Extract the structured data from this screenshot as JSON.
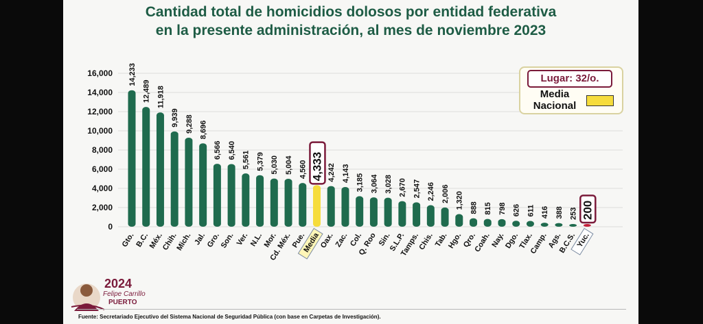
{
  "title_line1": "Cantidad total de homicidios dolosos por entidad federativa",
  "title_line2": "en la presente administración, al mes de noviembre 2023",
  "legend": {
    "lugar": "Lugar: 32/o.",
    "media_label_line1": "Media",
    "media_label_line2": "Nacional",
    "media_color": "#f6dc3c"
  },
  "logo": {
    "year": "2024",
    "name": "Felipe Carrillo",
    "place": "PUERTO"
  },
  "source": "Fuente:  Secretariado Ejecutivo del Sistema Nacional de Seguridad Pública (con base en Carpetas de Investigación).",
  "colors": {
    "bar": "#1f6b4e",
    "media": "#f6dc3c",
    "highlight": "#c41f3a",
    "title": "#1e5c45",
    "accent": "#7a1a3a"
  },
  "chart_data": {
    "type": "bar",
    "title": "Cantidad total de homicidios dolosos por entidad federativa en la presente administración, al mes de noviembre 2023",
    "xlabel": "",
    "ylabel": "",
    "ylim": [
      0,
      16000
    ],
    "yticks": [
      "0",
      "2,000",
      "4,000",
      "6,000",
      "8,000",
      "10,000",
      "12,000",
      "14,000",
      "16,000"
    ],
    "grid": true,
    "categories": [
      "Gto.",
      "B.C.",
      "Méx.",
      "Chih.",
      "Mich.",
      "Jal.",
      "Gro.",
      "Son.",
      "Ver.",
      "N.L.",
      "Mor.",
      "Cd. Méx.",
      "Pue.",
      "Media",
      "Oax.",
      "Zac.",
      "Col.",
      "Q. Roo",
      "Sin.",
      "S.L.P.",
      "Tamps.",
      "Chis.",
      "Tab.",
      "Hgo.",
      "Qro.",
      "Coah.",
      "Nay.",
      "Dgo.",
      "Tlax.",
      "Camp.",
      "Ags.",
      "B.C.S.",
      "Yuc."
    ],
    "values": [
      14233,
      12489,
      11918,
      9939,
      9288,
      8696,
      6566,
      6540,
      5561,
      5379,
      5030,
      5004,
      4560,
      4333,
      4242,
      4143,
      3185,
      3064,
      3028,
      2670,
      2547,
      2246,
      2006,
      1320,
      888,
      815,
      798,
      626,
      611,
      416,
      388,
      253,
      200
    ],
    "value_labels": [
      "14,233",
      "12,489",
      "11,918",
      "9,939",
      "9,288",
      "8,696",
      "6,566",
      "6,540",
      "5,561",
      "5,379",
      "5,030",
      "5,004",
      "4,560",
      "4,333",
      "4,242",
      "4,143",
      "3,185",
      "3,064",
      "3,028",
      "2,670",
      "2,547",
      "2,246",
      "2,006",
      "1,320",
      "888",
      "815",
      "798",
      "626",
      "611",
      "416",
      "388",
      "253",
      "200"
    ],
    "media_index": 13,
    "highlight_index": 32
  }
}
